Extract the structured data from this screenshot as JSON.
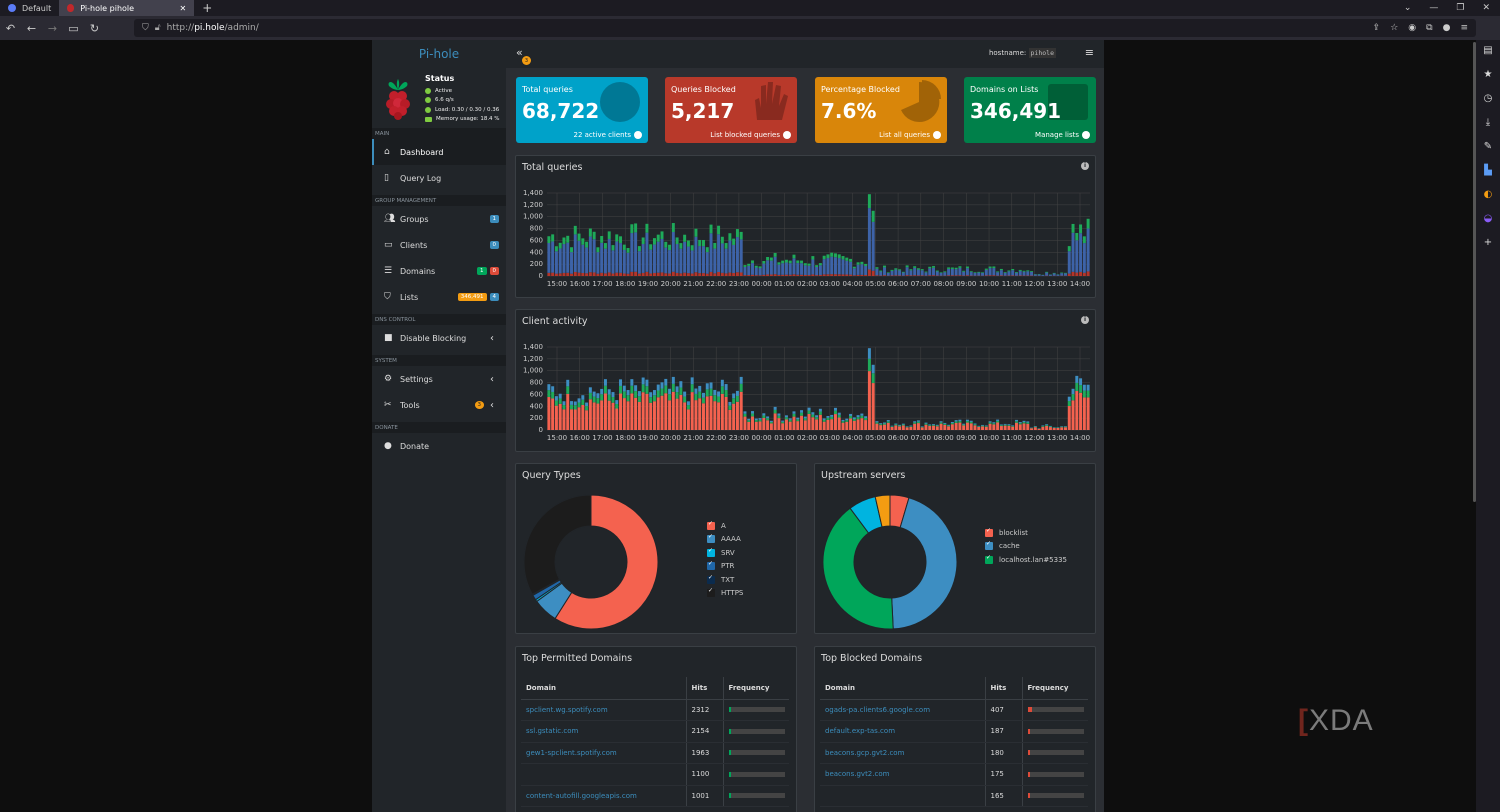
{
  "browser": {
    "tabs": [
      {
        "title": "Default"
      },
      {
        "title": "Pi-hole pihole"
      }
    ],
    "url_prefix": "http://",
    "url_host": "pi.hole",
    "url_path": "/admin/"
  },
  "sidebar": {
    "brand": "Pi-hole",
    "status_title": "Status",
    "status_lines": [
      "Active",
      "6.6 q/s",
      "Load: 0.30 / 0.30 / 0.36",
      "Memory usage: 18.4 %"
    ],
    "sections": {
      "main": "MAIN",
      "group": "GROUP MANAGEMENT",
      "dns": "DNS CONTROL",
      "system": "SYSTEM",
      "donate": "DONATE"
    },
    "items": {
      "dashboard": "Dashboard",
      "querylog": "Query Log",
      "groups": "Groups",
      "groups_badge": "1",
      "clients": "Clients",
      "clients_badge": "0",
      "domains": "Domains",
      "domains_badge_allow": "1",
      "domains_badge_deny": "0",
      "lists": "Lists",
      "lists_badge_count": "346,491",
      "lists_badge": "4",
      "disable": "Disable Blocking",
      "settings": "Settings",
      "tools": "Tools",
      "tools_badge": "3",
      "donate": "Donate"
    }
  },
  "topbar": {
    "notif_count": "3",
    "hostname_label": "hostname:",
    "hostname_value": "pihole"
  },
  "stats": [
    {
      "title": "Total queries",
      "value": "68,722",
      "footer": "22 active clients",
      "color": "#00a2c9"
    },
    {
      "title": "Queries Blocked",
      "value": "5,217",
      "footer": "List blocked queries",
      "color": "#b8392a"
    },
    {
      "title": "Percentage Blocked",
      "value": "7.6%",
      "footer": "List all queries",
      "color": "#d9860a"
    },
    {
      "title": "Domains on Lists",
      "value": "346,491",
      "footer": "Manage lists",
      "color": "#00804a"
    }
  ],
  "total_queries_chart": {
    "title": "Total queries",
    "yticks": [
      "1,400",
      "1,200",
      "1,000",
      "800",
      "600",
      "400",
      "200",
      "0"
    ],
    "xticks": [
      "15:00",
      "16:00",
      "17:00",
      "18:00",
      "19:00",
      "20:00",
      "21:00",
      "22:00",
      "23:00",
      "00:00",
      "01:00",
      "02:00",
      "03:00",
      "04:00",
      "05:00",
      "06:00",
      "07:00",
      "08:00",
      "09:00",
      "10:00",
      "11:00",
      "12:00",
      "13:00",
      "14:00"
    ]
  },
  "client_activity_chart": {
    "title": "Client activity",
    "yticks": [
      "1,400",
      "1,200",
      "1,000",
      "800",
      "600",
      "400",
      "200",
      "0"
    ],
    "xticks": [
      "15:00",
      "16:00",
      "17:00",
      "18:00",
      "19:00",
      "20:00",
      "21:00",
      "22:00",
      "23:00",
      "00:00",
      "01:00",
      "02:00",
      "03:00",
      "04:00",
      "05:00",
      "06:00",
      "07:00",
      "08:00",
      "09:00",
      "10:00",
      "11:00",
      "12:00",
      "13:00",
      "14:00"
    ]
  },
  "query_types": {
    "title": "Query Types",
    "items": [
      {
        "label": "A",
        "value": 59,
        "color": "#f4624f"
      },
      {
        "label": "AAAA",
        "value": 6,
        "color": "#3d8ec2"
      },
      {
        "label": "SRV",
        "value": 0.5,
        "color": "#00b4e0"
      },
      {
        "label": "PTR",
        "value": 1.2,
        "color": "#2067a8"
      },
      {
        "label": "TXT",
        "value": 0.3,
        "color": "#0b2b4d"
      },
      {
        "label": "HTTPS",
        "value": 33,
        "color": "#1c1c1c"
      }
    ]
  },
  "upstream": {
    "title": "Upstream servers",
    "legend": [
      {
        "label": "blocklist",
        "color": "#f4624f"
      },
      {
        "label": "cache",
        "color": "#3d8ec2"
      },
      {
        "label": "localhost.lan#5335",
        "color": "#00a65a"
      }
    ],
    "slices": [
      {
        "label": "blocklist",
        "value": 4.5,
        "color": "#f4624f"
      },
      {
        "label": "cache",
        "value": 44,
        "color": "#3d8ec2"
      },
      {
        "label": "localhost.lan#5335",
        "value": 40,
        "color": "#00a65a"
      },
      {
        "label": "",
        "value": 6.5,
        "color": "#00b4e0"
      },
      {
        "label": "",
        "value": 3.5,
        "color": "#f39c12"
      }
    ]
  },
  "top_permitted": {
    "title": "Top Permitted Domains",
    "headers": [
      "Domain",
      "Hits",
      "Frequency"
    ],
    "rows": [
      {
        "domain": "spclient.wg.spotify.com",
        "hits": "2312",
        "freq": 0.04
      },
      {
        "domain": "ssl.gstatic.com",
        "hits": "2154",
        "freq": 0.035
      },
      {
        "domain": "gew1-spclient.spotify.com",
        "hits": "1963",
        "freq": 0.03
      },
      {
        "domain": "",
        "hits": "1100",
        "freq": 0.02
      },
      {
        "domain": "content-autofill.googleapis.com",
        "hits": "1001",
        "freq": 0.015
      }
    ]
  },
  "top_blocked": {
    "title": "Top Blocked Domains",
    "headers": [
      "Domain",
      "Hits",
      "Frequency"
    ],
    "rows": [
      {
        "domain": "ogads-pa.clients6.google.com",
        "hits": "407",
        "freq": 0.08
      },
      {
        "domain": "default.exp-tas.com",
        "hits": "187",
        "freq": 0.04
      },
      {
        "domain": "beacons.gcp.gvt2.com",
        "hits": "180",
        "freq": 0.035
      },
      {
        "domain": "beacons.gvt2.com",
        "hits": "175",
        "freq": 0.034
      },
      {
        "domain": "",
        "hits": "165",
        "freq": 0.032
      }
    ]
  },
  "watermark": "XDA"
}
